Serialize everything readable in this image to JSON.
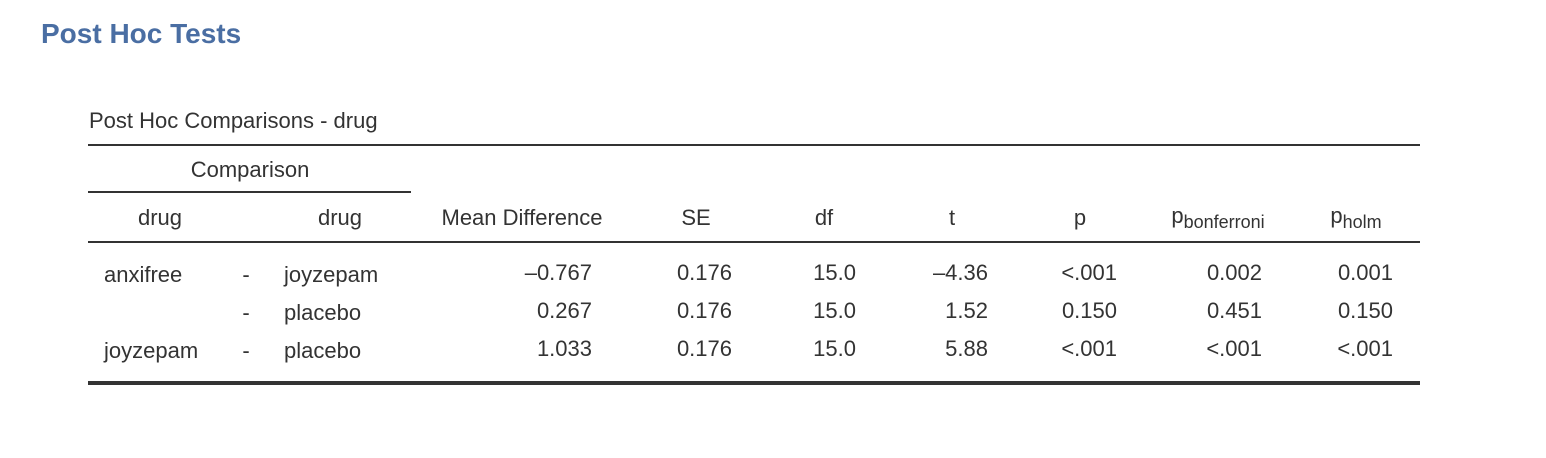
{
  "section_title": "Post Hoc Tests",
  "table": {
    "title": "Post Hoc Comparisons - drug",
    "group_header": "Comparison",
    "columns": {
      "drug1": "drug",
      "drug2": "drug",
      "mean_diff": "Mean Difference",
      "se": "SE",
      "df": "df",
      "t": "t",
      "p": "p",
      "p_bonf_main": "p",
      "p_bonf_sub": "bonferroni",
      "p_holm_main": "p",
      "p_holm_sub": "holm"
    },
    "rows": [
      {
        "drug1": "anxifree",
        "sep": "-",
        "drug2": "joyzepam",
        "mean_diff": "–0.767",
        "se": "0.176",
        "df": "15.0",
        "t": "–4.36",
        "p": "<.001",
        "p_bonf": "0.002",
        "p_holm": "0.001"
      },
      {
        "drug1": "",
        "sep": "-",
        "drug2": "placebo",
        "mean_diff": "0.267",
        "se": "0.176",
        "df": "15.0",
        "t": "1.52",
        "p": "0.150",
        "p_bonf": "0.451",
        "p_holm": "0.150"
      },
      {
        "drug1": "joyzepam",
        "sep": "-",
        "drug2": "placebo",
        "mean_diff": "1.033",
        "se": "0.176",
        "df": "15.0",
        "t": "5.88",
        "p": "<.001",
        "p_bonf": "<.001",
        "p_holm": "<.001"
      }
    ]
  }
}
